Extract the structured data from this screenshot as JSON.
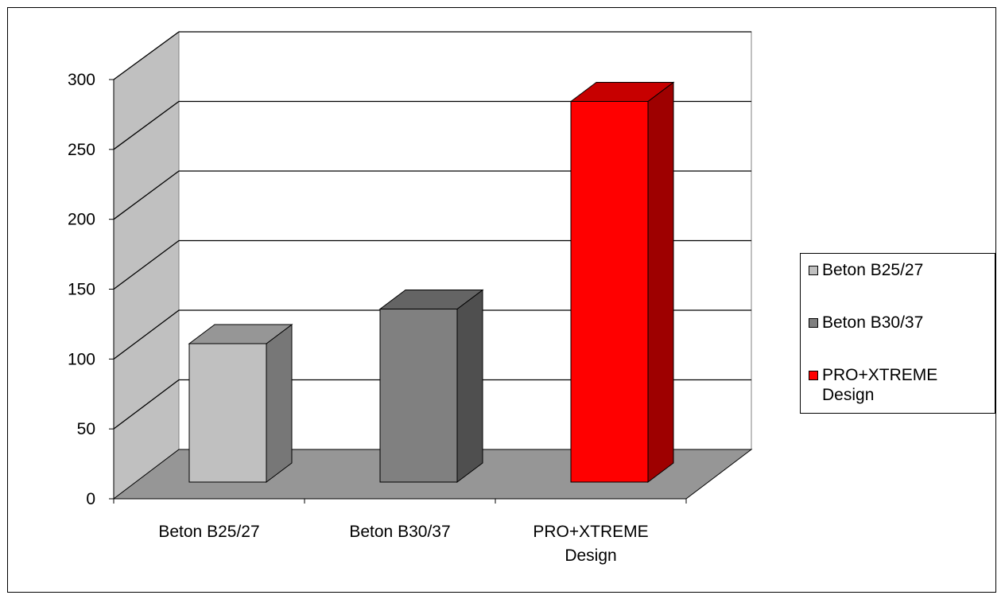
{
  "chart_data": {
    "type": "bar",
    "categories": [
      "Beton B25/27",
      "Beton B30/37",
      "PRO+XTREME Design"
    ],
    "values": [
      100,
      125,
      275
    ],
    "colors": [
      "#c0c0c0",
      "#808080",
      "#ff0000"
    ],
    "yticks": [
      "0",
      "50",
      "100",
      "150",
      "200",
      "250",
      "300"
    ],
    "ylim": [
      0,
      300
    ],
    "grid": true,
    "legend_position": "right",
    "legend": [
      {
        "label": "Beton B25/27",
        "color": "#c0c0c0"
      },
      {
        "label": "Beton B30/37",
        "color": "#808080"
      },
      {
        "label": "PRO+XTREME Design",
        "color": "#ff0000"
      }
    ],
    "title": "",
    "xlabel": "",
    "ylabel": ""
  }
}
